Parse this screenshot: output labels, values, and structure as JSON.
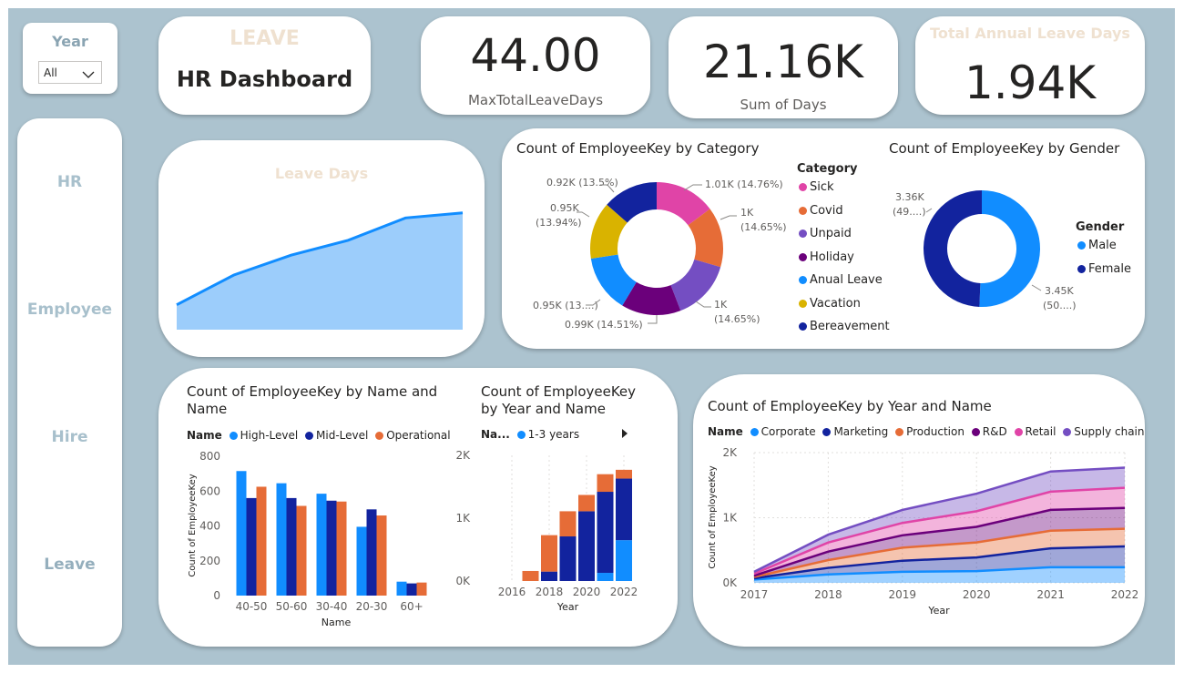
{
  "slicer": {
    "title": "Year",
    "value": "All"
  },
  "title_card": {
    "subtitle": "LEAVE",
    "title": "HR Dashboard"
  },
  "kpis": [
    {
      "value": "44.00",
      "label": "MaxTotalLeaveDays"
    },
    {
      "value": "21.16K",
      "label": "Sum of Days"
    },
    {
      "value": "1.94K",
      "label": "Total Annual Leave Days"
    }
  ],
  "nav": {
    "items": [
      "HR",
      "Employee",
      "Hire",
      "Leave"
    ]
  },
  "colors": {
    "canvas": "#acc3cf",
    "area_line": "#118dff",
    "area_fill": "#9ccdfb",
    "high_level": "#118dff",
    "mid_level": "#12239e",
    "operational": "#e66c37"
  },
  "charts": {
    "leave_days": {
      "chart_data": {
        "type": "area",
        "title": "Leave Days",
        "values": [
          1,
          2.2,
          3,
          3.6,
          4.5,
          4.7
        ],
        "ylim": [
          0,
          5.5
        ]
      }
    },
    "category": {
      "chart_data": {
        "type": "pie",
        "title": "Count of EmployeeKey by Category",
        "legend_title": "Category",
        "slices": [
          {
            "name": "Sick",
            "value": 1010,
            "label_value": "1.01K (14.76%)",
            "color": "#e044a7"
          },
          {
            "name": "Covid",
            "value": 1000,
            "label_value": "1K",
            "label_pct": "(14.65%)",
            "color": "#e66c37"
          },
          {
            "name": "Unpaid",
            "value": 1000,
            "label_value": "1K",
            "label_pct": "(14.65%)",
            "color": "#744ec2"
          },
          {
            "name": "Holiday",
            "value": 990,
            "label_value": "0.99K (14.51%)",
            "color": "#6b007b"
          },
          {
            "name": "Anual Leave",
            "value": 950,
            "label_value": "0.95K (13....)",
            "color": "#118dff"
          },
          {
            "name": "Vacation",
            "value": 950,
            "label_value": "0.95K",
            "label_pct": "(13.94%)",
            "color": "#d9b300"
          },
          {
            "name": "Bereavement",
            "value": 920,
            "label_value": "0.92K (13.5%)",
            "color": "#12239e"
          }
        ]
      }
    },
    "gender": {
      "chart_data": {
        "type": "pie",
        "title": "Count of EmployeeKey by Gender",
        "legend_title": "Gender",
        "slices": [
          {
            "name": "Male",
            "value": 3450,
            "label_value": "3.45K",
            "label_pct": "(50....)",
            "color": "#118dff"
          },
          {
            "name": "Female",
            "value": 3360,
            "label_value": "3.36K",
            "label_pct": "(49....)",
            "color": "#12239e"
          }
        ]
      }
    },
    "age_bar": {
      "chart_data": {
        "type": "bar",
        "title": "Count of EmployeeKey by Name and Name",
        "legend_title": "Name",
        "xlabel": "Name",
        "ylabel": "Count of EmployeeKey",
        "categories": [
          "40-50",
          "50-60",
          "30-40",
          "20-30",
          "60+"
        ],
        "ylim": [
          0,
          800
        ],
        "yticks": [
          "0",
          "200",
          "400",
          "600",
          "800"
        ],
        "series": [
          {
            "name": "High-Level",
            "values": [
              715,
              645,
              585,
              395,
              80
            ],
            "color": "#118dff"
          },
          {
            "name": "Mid-Level",
            "values": [
              560,
              560,
              545,
              495,
              70
            ],
            "color": "#12239e"
          },
          {
            "name": "Operational",
            "values": [
              625,
              515,
              540,
              460,
              75
            ],
            "color": "#e66c37"
          }
        ]
      }
    },
    "year_stacked": {
      "chart_data": {
        "type": "bar",
        "title_line1": "Count of EmployeeKey",
        "title_line2": "by Year and Name",
        "legend_title": "Na...",
        "legend_item": "1-3 years",
        "xlabel": "Year",
        "ylim": [
          0,
          2000
        ],
        "yticks": [
          "0K",
          "1K",
          "2K"
        ],
        "xticks": [
          "2016",
          "2018",
          "2020",
          "2022"
        ],
        "x": [
          2017,
          2018,
          2019,
          2020,
          2021,
          2022
        ],
        "series": [
          {
            "name": "1-3 years",
            "values": [
              0,
              0,
              0,
              0,
              130,
              650
            ],
            "color": "#118dff"
          },
          {
            "name": "",
            "values": [
              0,
              150,
              710,
              1110,
              1420,
              1630
            ],
            "color": "#12239e",
            "cumulative": true
          },
          {
            "name": "",
            "values": [
              160,
              730,
              1110,
              1370,
              1700,
              1770
            ],
            "color": "#e66c37",
            "cumulative": true
          }
        ]
      }
    },
    "year_area": {
      "chart_data": {
        "type": "area",
        "title": "Count of EmployeeKey by Year and Name",
        "legend_title": "Name",
        "xlabel": "Year",
        "ylabel": "Count of EmployeeKey",
        "ylim": [
          0,
          2000
        ],
        "yticks": [
          "0K",
          "1K",
          "2K"
        ],
        "x": [
          "2017",
          "2018",
          "2019",
          "2020",
          "2021",
          "2022"
        ],
        "series": [
          {
            "name": "Corporate",
            "values": [
              50,
              130,
              170,
              180,
              240,
              240
            ],
            "color": "#118dff"
          },
          {
            "name": "Marketing",
            "values": [
              70,
              230,
              340,
              390,
              530,
              560
            ],
            "color": "#12239e"
          },
          {
            "name": "Production",
            "values": [
              90,
              350,
              540,
              620,
              800,
              830
            ],
            "color": "#e66c37"
          },
          {
            "name": "R&D",
            "values": [
              110,
              480,
              730,
              860,
              1120,
              1150
            ],
            "color": "#6b007b"
          },
          {
            "name": "Retail",
            "values": [
              140,
              620,
              920,
              1100,
              1400,
              1460
            ],
            "color": "#e044a7"
          },
          {
            "name": "Supply chain",
            "values": [
              170,
              740,
              1120,
              1370,
              1710,
              1770
            ],
            "color": "#744ec2"
          }
        ]
      }
    }
  }
}
